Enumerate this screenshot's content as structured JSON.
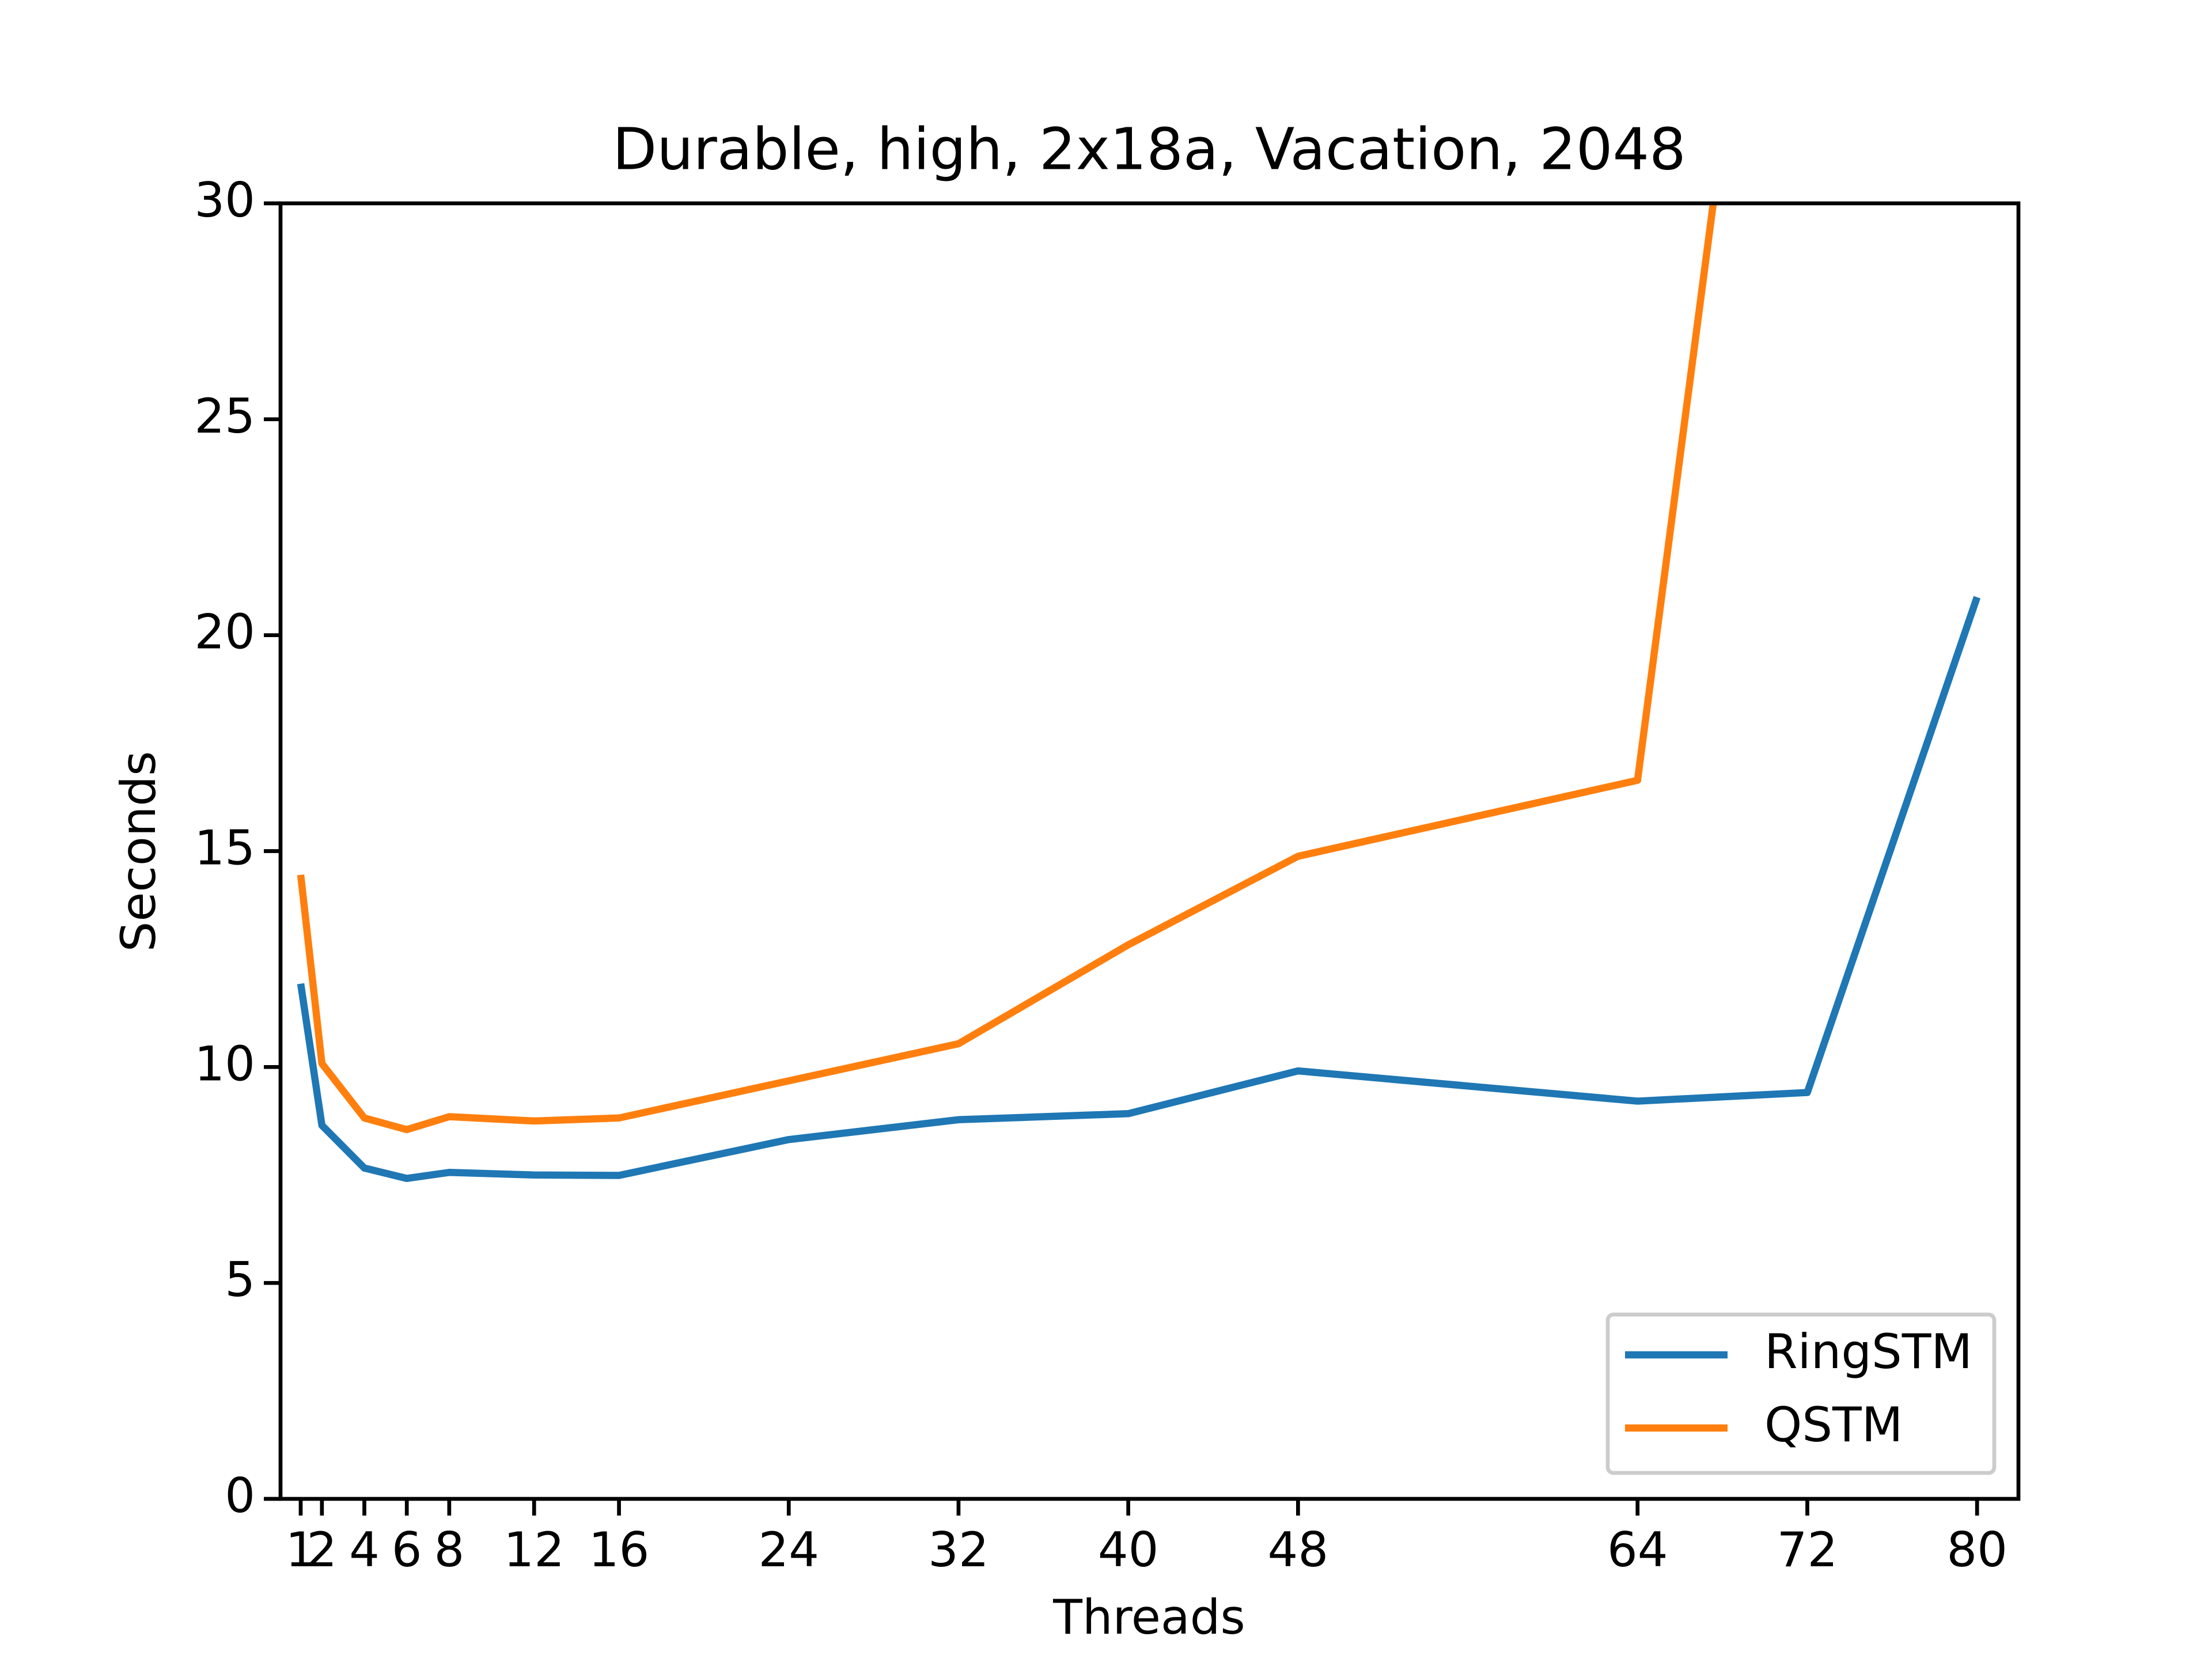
{
  "chart_data": {
    "type": "line",
    "title": "Durable, high, 2x18a, Vacation, 2048",
    "x_label": "Threads",
    "y_label": "Seconds",
    "x": [
      1,
      2,
      4,
      6,
      8,
      12,
      16,
      24,
      32,
      40,
      48,
      64,
      72,
      80
    ],
    "series": [
      {
        "name": "RingSTM",
        "color": "#1f77b4",
        "values": [
          11.93,
          8.65,
          7.66,
          7.42,
          7.56,
          7.5,
          7.49,
          8.32,
          8.78,
          8.92,
          9.91,
          9.21,
          9.41,
          20.88
        ]
      },
      {
        "name": "QSTM",
        "color": "#ff7f0e",
        "values": [
          14.45,
          10.08,
          8.82,
          8.55,
          8.85,
          8.75,
          8.82,
          9.68,
          10.54,
          12.83,
          14.88,
          16.64,
          46.6,
          null
        ]
      }
    ],
    "xlim": [
      0.05,
      81.95
    ],
    "ylim": [
      0,
      30
    ],
    "xticks": [
      1,
      2,
      4,
      6,
      8,
      12,
      16,
      24,
      32,
      40,
      48,
      64,
      72,
      80
    ],
    "yticks": [
      0,
      5,
      10,
      15,
      20,
      25,
      30
    ],
    "legend": "lower right"
  }
}
